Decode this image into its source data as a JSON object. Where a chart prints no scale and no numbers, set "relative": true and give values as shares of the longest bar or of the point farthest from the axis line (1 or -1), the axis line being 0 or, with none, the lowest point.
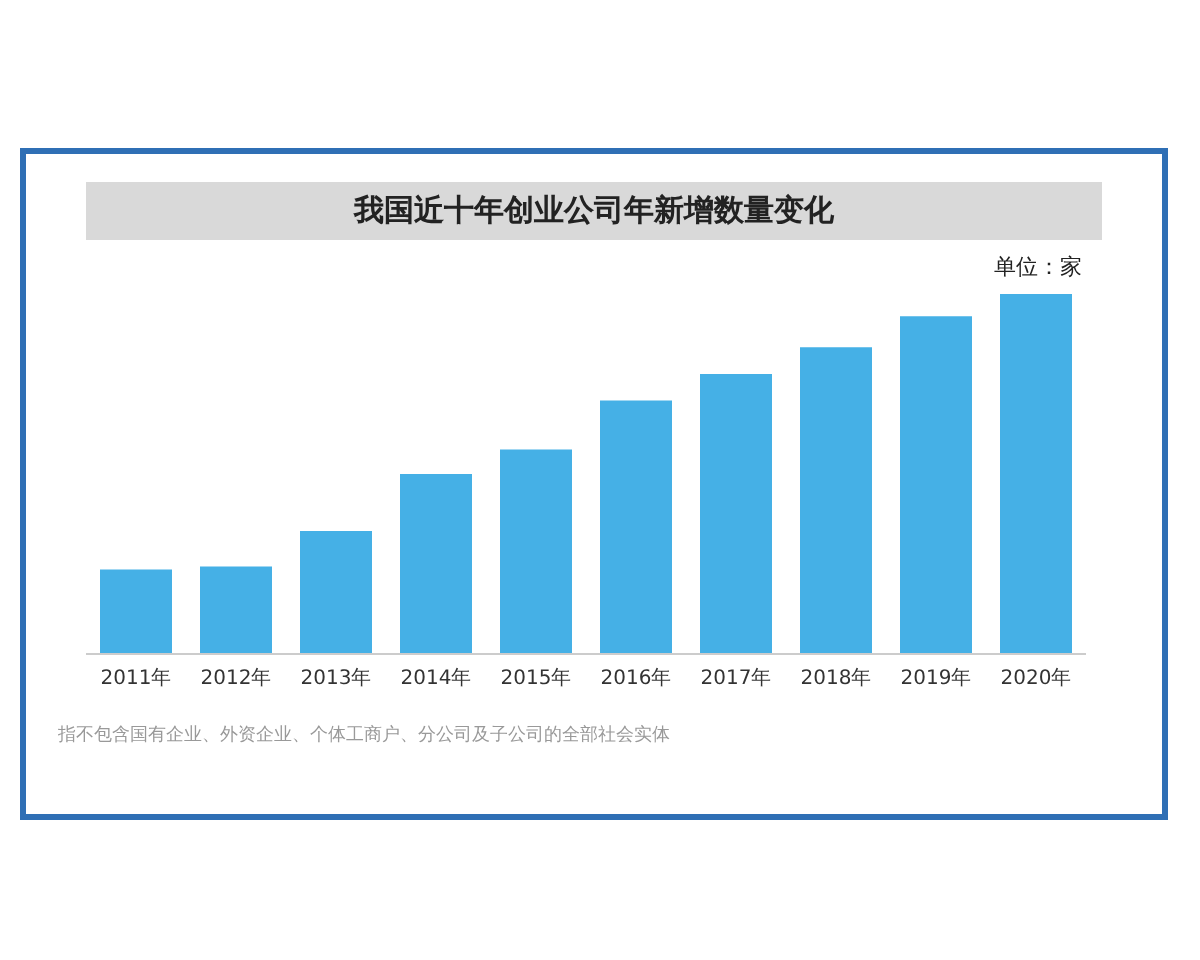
{
  "chart_data": {
    "type": "bar",
    "title": "我国近十年创业公司年新增数量变化",
    "subtitle": "单位：家",
    "categories": [
      "2011年",
      "2012年",
      "2013年",
      "2014年",
      "2015年",
      "2016年",
      "2017年",
      "2018年",
      "2019年",
      "2020年"
    ],
    "values": [
      0.235,
      0.243,
      0.342,
      0.5,
      0.568,
      0.704,
      0.778,
      0.852,
      0.938,
      1
    ],
    "color": "#45b0e6",
    "relative": true,
    "grid": false,
    "annotations": [
      "指不包含国有企业、外资企业、个体工商户、分公司及子公司的全部社会实体"
    ]
  }
}
